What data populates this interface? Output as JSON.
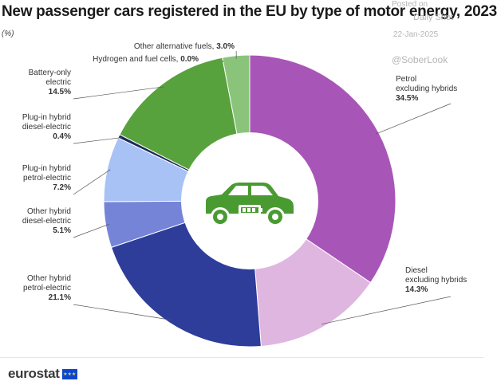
{
  "title": "New passenger cars registered in the EU by type of motor energy, 2023",
  "unit": "(%)",
  "watermark": {
    "posted": "Posted on",
    "source": "Daily Shot",
    "date": "22-Jan-2025",
    "handle": "@SoberLook"
  },
  "footer": {
    "logo": "eurostat"
  },
  "icons": {
    "center": "car-battery-icon",
    "flag": "eu-flag-icon"
  },
  "chart_data": {
    "type": "pie",
    "style": "donut",
    "unit": "%",
    "slices": [
      {
        "name_lines": [
          "Petrol",
          "excluding hybrids"
        ],
        "value": 34.5,
        "value_label": "34.5%",
        "color": "#a855b8"
      },
      {
        "name_lines": [
          "Diesel",
          "excluding hybrids"
        ],
        "value": 14.3,
        "value_label": "14.3%",
        "color": "#dfb6e0"
      },
      {
        "name_lines": [
          "Other hybrid",
          "petrol-electric"
        ],
        "value": 21.1,
        "value_label": "21.1%",
        "color": "#2e3d9a"
      },
      {
        "name_lines": [
          "Other hybrid",
          "diesel-electric"
        ],
        "value": 5.1,
        "value_label": "5.1%",
        "color": "#7684d8"
      },
      {
        "name_lines": [
          "Plug-in hybrid",
          "petrol-electric"
        ],
        "value": 7.2,
        "value_label": "7.2%",
        "color": "#a8c2f5"
      },
      {
        "name_lines": [
          "Plug-in hybrid",
          "diesel-electric"
        ],
        "value": 0.4,
        "value_label": "0.4%",
        "color": "#1d2a5c"
      },
      {
        "name_lines": [
          "Battery-only",
          "electric"
        ],
        "value": 14.5,
        "value_label": "14.5%",
        "color": "#58a23e"
      },
      {
        "name_lines": [
          "Hydrogen and fuel cells,"
        ],
        "value": 0.0,
        "value_label": "0.0%",
        "color": "#2f6e24"
      },
      {
        "name_lines": [
          "Other alternative fuels,"
        ],
        "value": 3.0,
        "value_label": "3.0%",
        "color": "#8ac47a"
      }
    ],
    "center_color": "#4a9a32"
  }
}
